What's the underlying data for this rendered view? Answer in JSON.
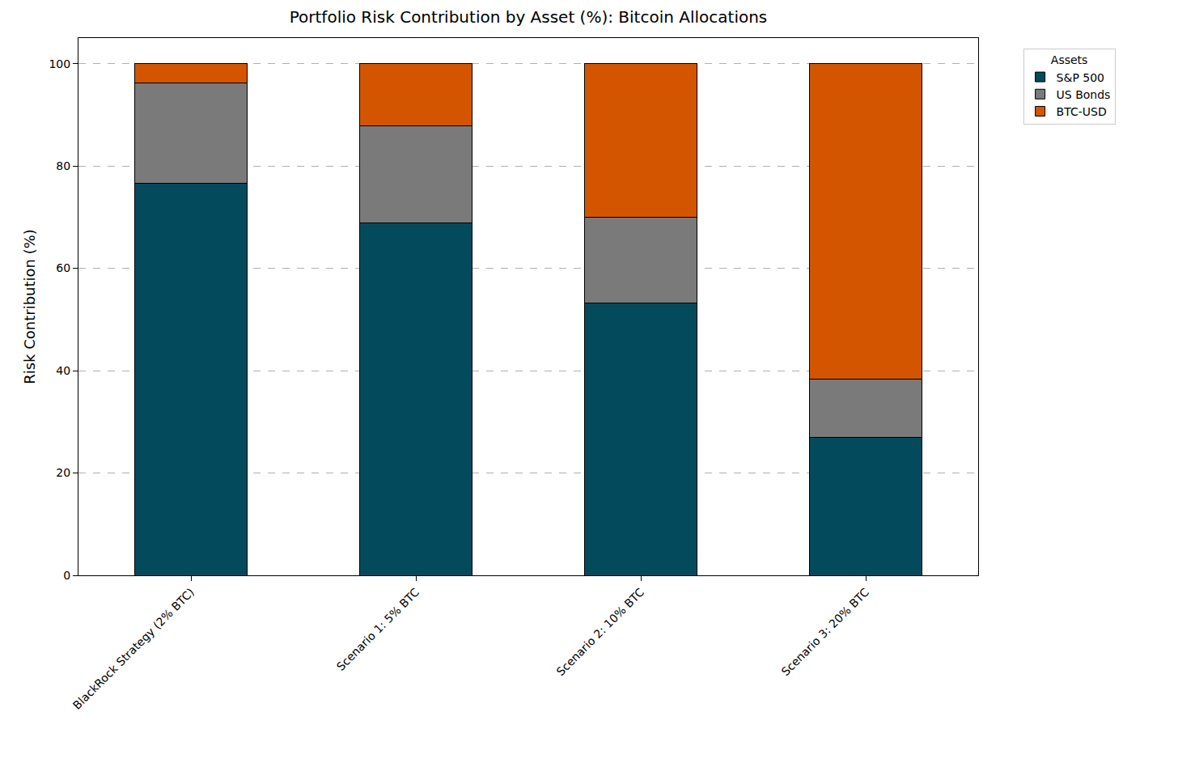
{
  "chart_data": {
    "type": "bar",
    "stacked": true,
    "title": "Portfolio Risk Contribution by Asset (%): Bitcoin Allocations",
    "y_label": "Risk Contribution (%)",
    "legend_title": "Assets",
    "legend": "upper right",
    "grid": true,
    "categories": [
      "BlackRock Strategy (2% BTC)",
      "Scenario 1: 5% BTC",
      "Scenario 2: 10% BTC",
      "Scenario 3: 20% BTC"
    ],
    "series": [
      {
        "name": "S&P 500",
        "color": "#034b5c",
        "values": [
          76.6,
          68.8,
          53.2,
          26.9
        ]
      },
      {
        "name": "US Bonds",
        "color": "#7a7a7a",
        "values": [
          19.6,
          19.1,
          16.8,
          11.4
        ]
      },
      {
        "name": "BTC-USD",
        "color": "#d45500",
        "values": [
          3.8,
          12.1,
          30.0,
          61.7
        ]
      }
    ],
    "ylim": [
      0,
      105
    ],
    "yticks": [
      0,
      20,
      40,
      60,
      80,
      100
    ]
  }
}
